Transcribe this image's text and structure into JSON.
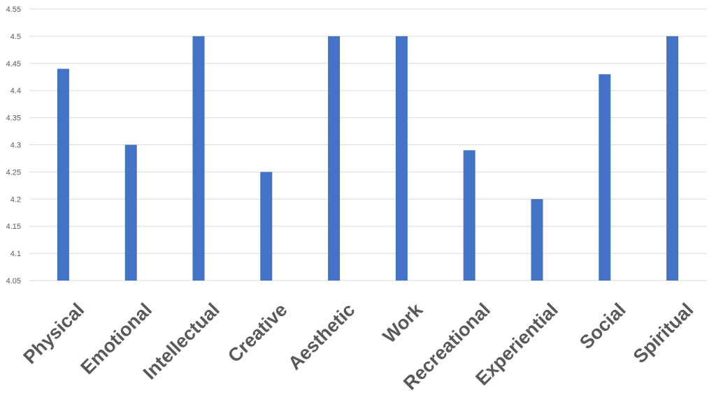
{
  "chart_data": {
    "type": "bar",
    "categories": [
      "Physical",
      "Emotional",
      "Intellectual",
      "Creative",
      "Aesthetic",
      "Work",
      "Recreational",
      "Experiential",
      "Social",
      "Spiritual"
    ],
    "series": [
      {
        "values": [
          4.44,
          4.3,
          4.5,
          4.25,
          4.5,
          4.5,
          4.29,
          4.2,
          4.43,
          4.5
        ],
        "color": "#4472c4"
      }
    ],
    "ylim": [
      4.05,
      4.55
    ],
    "yticks": [
      "4.05",
      "4.1",
      "4.15",
      "4.2",
      "4.25",
      "4.3",
      "4.35",
      "4.4",
      "4.45",
      "4.5",
      "4.55"
    ],
    "grid": true,
    "legend": "none",
    "title": "",
    "xlabel": "",
    "ylabel": ""
  }
}
